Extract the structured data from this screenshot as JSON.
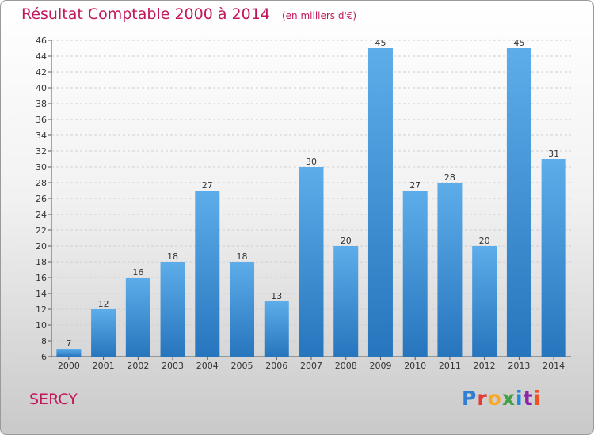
{
  "header": {
    "title": "Résultat Comptable 2000 à 2014",
    "subtitle": "(en milliers d'€)"
  },
  "footer": {
    "town": "SERCY",
    "logo_letters": [
      "P",
      "r",
      "o",
      "x",
      "i",
      "t",
      "i"
    ]
  },
  "colors": {
    "title": "#c2185b",
    "bar_top": "#5dadea",
    "bar_bottom": "#2775bd"
  },
  "chart_data": {
    "type": "bar",
    "title": "Résultat Comptable 2000 à 2014",
    "subtitle": "(en milliers d'€)",
    "xlabel": "",
    "ylabel": "",
    "categories": [
      "2000",
      "2001",
      "2002",
      "2003",
      "2004",
      "2005",
      "2006",
      "2007",
      "2008",
      "2009",
      "2010",
      "2011",
      "2012",
      "2013",
      "2014"
    ],
    "values": [
      7,
      12,
      16,
      18,
      27,
      18,
      13,
      30,
      20,
      45,
      27,
      28,
      20,
      45,
      31
    ],
    "ylim": [
      6,
      46
    ],
    "yticks": [
      6,
      8,
      10,
      12,
      14,
      16,
      18,
      20,
      22,
      24,
      26,
      28,
      30,
      32,
      34,
      36,
      38,
      40,
      42,
      44,
      46
    ],
    "grid": true
  }
}
